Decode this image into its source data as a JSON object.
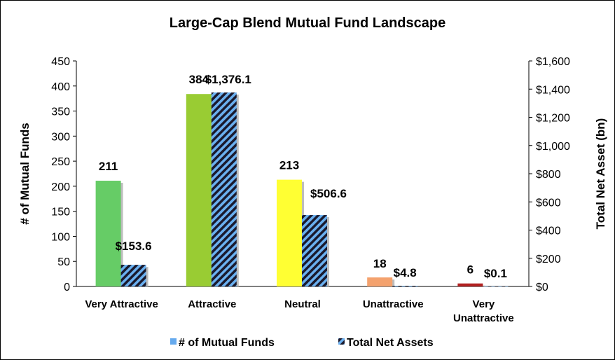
{
  "chart_data": {
    "type": "bar",
    "title": "Large-Cap Blend Mutual Fund Landscape",
    "ylabel": "# of Mutual Funds",
    "y2label": "Total Net Asset (bn)",
    "ylim": [
      0,
      450
    ],
    "y2lim": [
      0,
      1600
    ],
    "yticks": [
      "0",
      "50",
      "100",
      "150",
      "200",
      "250",
      "300",
      "350",
      "400",
      "450"
    ],
    "y2ticks": [
      "$0",
      "$200",
      "$400",
      "$600",
      "$800",
      "$1,000",
      "$1,200",
      "$1,400",
      "$1,600"
    ],
    "categories": [
      [
        "Very Attractive"
      ],
      [
        "Attractive"
      ],
      [
        "Neutral"
      ],
      [
        "Unattractive"
      ],
      [
        "Very",
        "Unattractive"
      ]
    ],
    "series": [
      {
        "name": "# of Mutual Funds",
        "axis": "left",
        "values": [
          211,
          384,
          213,
          18,
          6
        ],
        "labels": [
          "211",
          "384",
          "213",
          "18",
          "6"
        ],
        "colors": [
          "#66cc66",
          "#99cc33",
          "#ffff33",
          "#f4a26e",
          "#b22222"
        ],
        "legend_color": "#66aaee"
      },
      {
        "name": "Total Net Assets",
        "axis": "right",
        "values": [
          153.6,
          1376.1,
          506.6,
          4.8,
          0.1
        ],
        "labels": [
          "$153.6",
          "$1,376.1",
          "$506.6",
          "$4.8",
          "$0.1"
        ],
        "fill": "striped",
        "colors": [
          "#1a1a2e",
          "#6ab0f0"
        ]
      }
    ],
    "legend_position": "bottom",
    "grid": false
  }
}
